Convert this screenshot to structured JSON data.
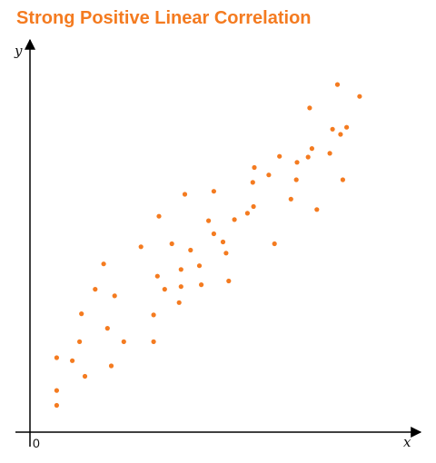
{
  "colors": {
    "accent": "#f47b20",
    "axis": "#000000"
  },
  "chart_data": {
    "type": "scatter",
    "title": "Strong Positive Linear Correlation",
    "xlabel": "x",
    "ylabel": "y",
    "origin_label": "0",
    "grid": false,
    "xlim": [
      0,
      100
    ],
    "ylim": [
      0,
      100
    ],
    "points": [
      [
        7.0,
        20.0
      ],
      [
        7.0,
        11.2
      ],
      [
        7.0,
        7.2
      ],
      [
        11.1,
        19.2
      ],
      [
        13.0,
        24.3
      ],
      [
        13.5,
        31.8
      ],
      [
        14.4,
        15.0
      ],
      [
        17.1,
        38.4
      ],
      [
        19.3,
        45.2
      ],
      [
        20.3,
        27.9
      ],
      [
        21.3,
        17.8
      ],
      [
        22.2,
        36.6
      ],
      [
        24.6,
        24.3
      ],
      [
        29.1,
        49.8
      ],
      [
        32.4,
        24.3
      ],
      [
        32.4,
        31.5
      ],
      [
        33.4,
        41.9
      ],
      [
        33.8,
        58.0
      ],
      [
        35.3,
        38.4
      ],
      [
        37.2,
        50.6
      ],
      [
        39.1,
        34.8
      ],
      [
        39.6,
        43.7
      ],
      [
        39.6,
        39.1
      ],
      [
        40.6,
        63.9
      ],
      [
        42.1,
        48.9
      ],
      [
        44.4,
        44.7
      ],
      [
        44.9,
        39.6
      ],
      [
        46.8,
        56.8
      ],
      [
        48.2,
        64.7
      ],
      [
        48.2,
        53.3
      ],
      [
        50.6,
        51.1
      ],
      [
        51.4,
        48.1
      ],
      [
        52.1,
        40.6
      ],
      [
        53.6,
        57.1
      ],
      [
        57.0,
        58.8
      ],
      [
        58.6,
        60.6
      ],
      [
        58.4,
        67.1
      ],
      [
        58.8,
        71.1
      ],
      [
        62.6,
        69.1
      ],
      [
        64.1,
        50.6
      ],
      [
        65.4,
        74.1
      ],
      [
        68.4,
        62.6
      ],
      [
        69.8,
        67.8
      ],
      [
        70.0,
        72.5
      ],
      [
        72.9,
        73.9
      ],
      [
        73.3,
        87.1
      ],
      [
        73.9,
        76.2
      ],
      [
        75.2,
        59.8
      ],
      [
        78.6,
        74.9
      ],
      [
        79.3,
        81.4
      ],
      [
        80.6,
        93.4
      ],
      [
        81.4,
        80.0
      ],
      [
        82.0,
        67.8
      ],
      [
        83.0,
        81.9
      ],
      [
        86.4,
        90.2
      ]
    ]
  }
}
